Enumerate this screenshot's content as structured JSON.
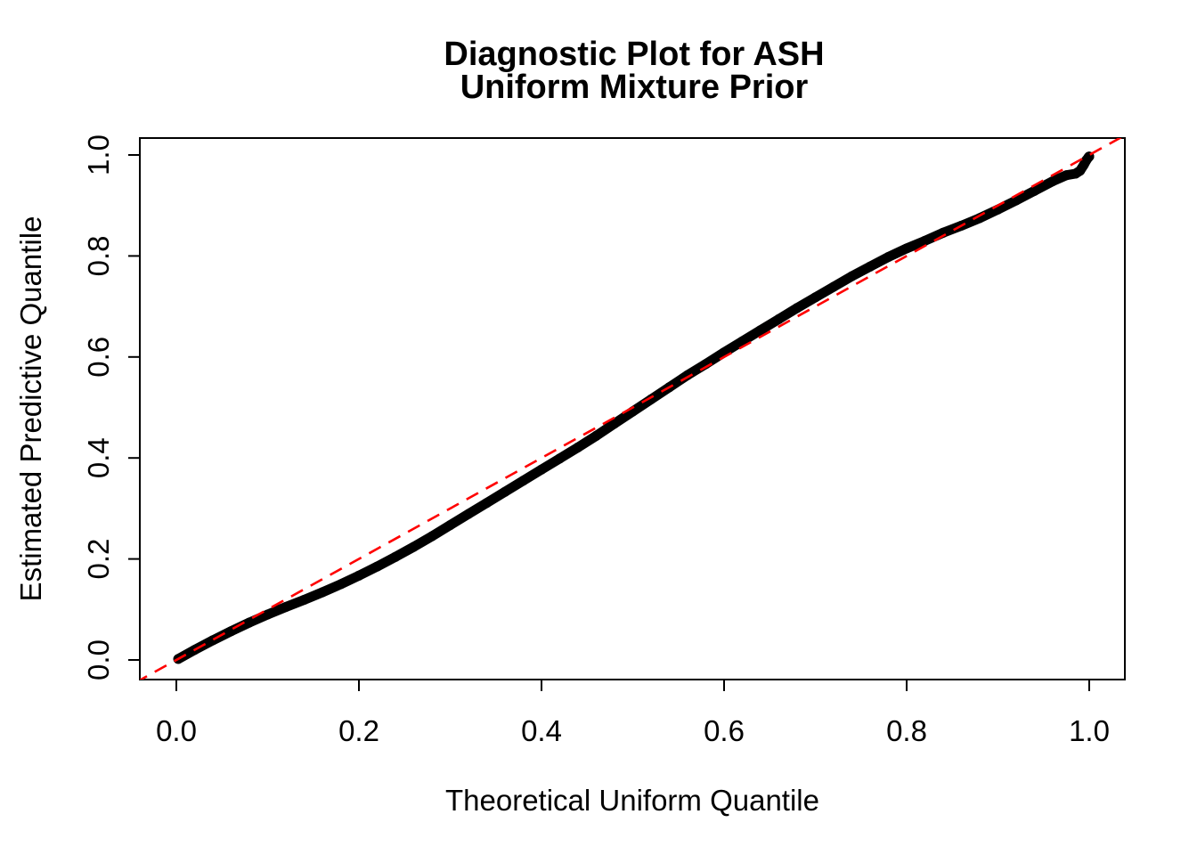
{
  "page": {
    "background": "#ffffff"
  },
  "chart_data": {
    "type": "scatter",
    "title_lines": [
      "Diagnostic Plot for ASH",
      "Uniform Mixture Prior"
    ],
    "xlabel": "Theoretical Uniform Quantile",
    "ylabel": "Estimated Predictive Quantile",
    "xlim": [
      -0.04,
      1.04
    ],
    "ylim": [
      -0.04,
      1.04
    ],
    "x_ticks": [
      "0.0",
      "0.2",
      "0.4",
      "0.6",
      "0.8",
      "1.0"
    ],
    "y_ticks": [
      "0.0",
      "0.2",
      "0.4",
      "0.6",
      "0.8",
      "1.0"
    ],
    "grid": false,
    "legend": false,
    "colors": {
      "points": "#000000",
      "reference_line": "#FF0000",
      "box": "#000000"
    },
    "series": [
      {
        "name": "estimated-predictive-quantiles",
        "type": "points-curve",
        "marker": "filled-circle",
        "color": "#000000",
        "x": [
          0.002,
          0.02,
          0.04,
          0.06,
          0.08,
          0.1,
          0.12,
          0.14,
          0.16,
          0.18,
          0.2,
          0.22,
          0.24,
          0.26,
          0.28,
          0.3,
          0.32,
          0.34,
          0.36,
          0.38,
          0.4,
          0.42,
          0.44,
          0.46,
          0.48,
          0.5,
          0.52,
          0.54,
          0.56,
          0.58,
          0.6,
          0.62,
          0.64,
          0.66,
          0.68,
          0.7,
          0.72,
          0.74,
          0.76,
          0.78,
          0.8,
          0.82,
          0.84,
          0.86,
          0.88,
          0.9,
          0.92,
          0.94,
          0.96,
          0.975,
          0.985,
          0.99,
          0.994,
          0.997,
          0.999,
          1.0
        ],
        "y": [
          0.002,
          0.02,
          0.039,
          0.057,
          0.074,
          0.09,
          0.105,
          0.119,
          0.134,
          0.15,
          0.167,
          0.185,
          0.204,
          0.224,
          0.245,
          0.267,
          0.289,
          0.311,
          0.333,
          0.355,
          0.377,
          0.399,
          0.421,
          0.444,
          0.468,
          0.492,
          0.516,
          0.54,
          0.564,
          0.586,
          0.609,
          0.631,
          0.653,
          0.675,
          0.697,
          0.718,
          0.739,
          0.76,
          0.779,
          0.798,
          0.815,
          0.83,
          0.846,
          0.86,
          0.875,
          0.892,
          0.91,
          0.929,
          0.948,
          0.96,
          0.963,
          0.969,
          0.98,
          0.99,
          0.995,
          0.997
        ]
      },
      {
        "name": "identity-reference-line",
        "type": "line",
        "style": "dashed",
        "color": "#FF0000",
        "x": [
          -0.045,
          1.045
        ],
        "y": [
          -0.045,
          1.045
        ]
      }
    ]
  }
}
